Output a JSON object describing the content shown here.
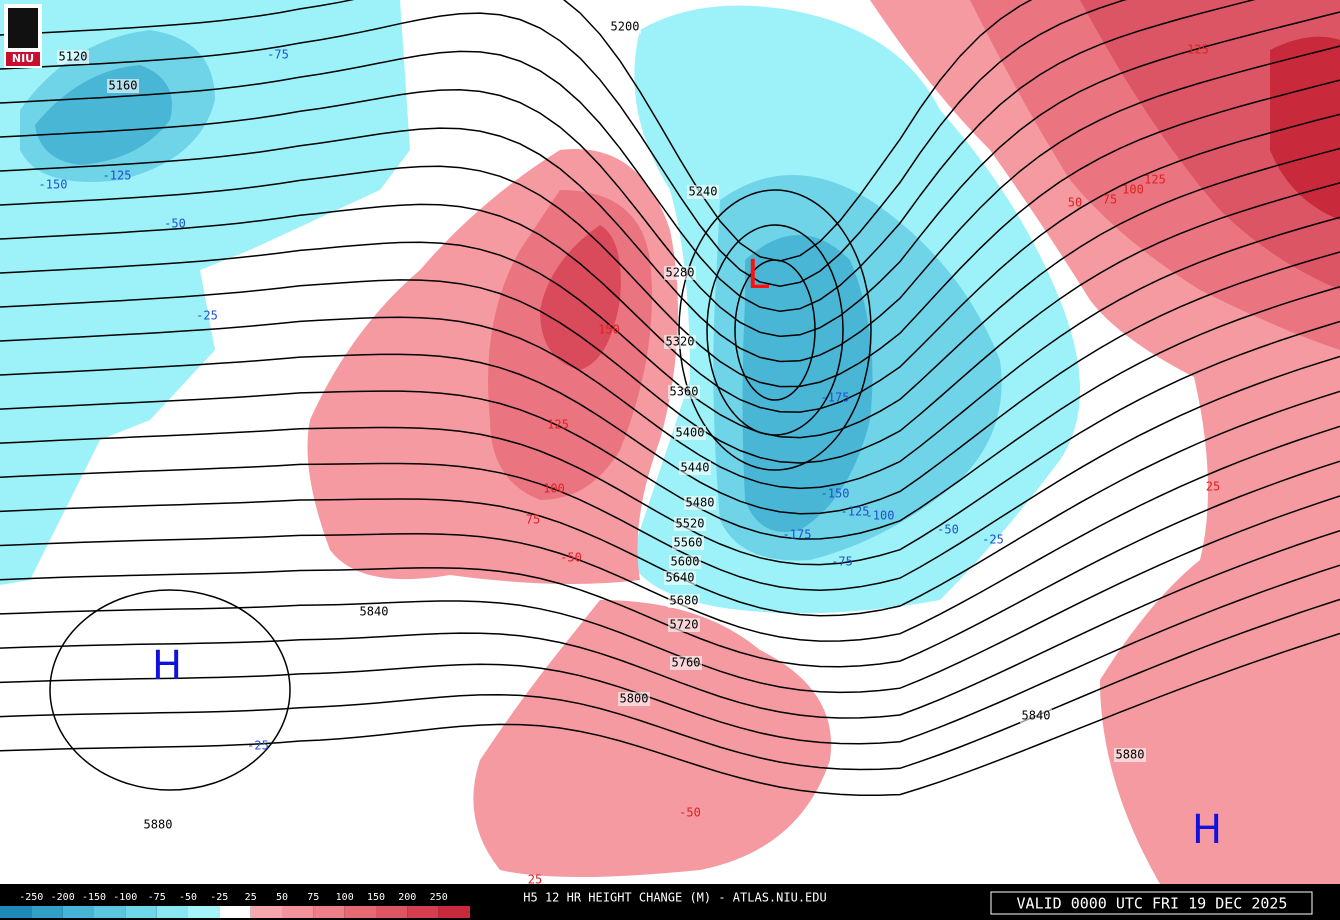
{
  "logo": "NIU",
  "title": "H5 12 HR HEIGHT CHANGE (M) - ATLAS.NIU.EDU",
  "valid": "VALID 0000 UTC FRI 19 DEC 2025",
  "colorbar": {
    "labels": [
      "-250",
      "-200",
      "-150",
      "-100",
      "-75",
      "-50",
      "-25",
      "25",
      "50",
      "75",
      "100",
      "150",
      "200",
      "250"
    ],
    "colors": [
      "#1e88b8",
      "#2fa0c8",
      "#45b4d6",
      "#5cc6e0",
      "#72d6ea",
      "#8ae6f2",
      "#a4f4fa",
      "#ffffff",
      "#f7a8ad",
      "#f3939a",
      "#ec7f88",
      "#e56a76",
      "#dc5564",
      "#d43e50",
      "#c82a3c"
    ]
  },
  "height_labels": [
    "5120",
    "5160",
    "5200",
    "5240",
    "5280",
    "5320",
    "5360",
    "5400",
    "5440",
    "5480",
    "5520",
    "5560",
    "5600",
    "5640",
    "5680",
    "5720",
    "5760",
    "5800",
    "5840",
    "5840",
    "5880",
    "5880"
  ],
  "change_labels": [
    {
      "text": "-75",
      "color": "#2050d0"
    },
    {
      "text": "-150",
      "color": "#2050d0"
    },
    {
      "text": "-125",
      "color": "#2050d0"
    },
    {
      "text": "-50",
      "color": "#2050d0"
    },
    {
      "text": "-25",
      "color": "#2050d0"
    },
    {
      "text": "-175",
      "color": "#2050d0"
    },
    {
      "text": "-150",
      "color": "#2050d0"
    },
    {
      "text": "-125",
      "color": "#2050d0"
    },
    {
      "text": "-100",
      "color": "#2050d0"
    },
    {
      "text": "-175",
      "color": "#2050d0"
    },
    {
      "text": "-75",
      "color": "#2050d0"
    },
    {
      "text": "-50",
      "color": "#2050d0"
    },
    {
      "text": "-25",
      "color": "#2050d0"
    },
    {
      "text": "-25",
      "color": "#2050d0"
    },
    {
      "text": "150",
      "color": "#e02020"
    },
    {
      "text": "125",
      "color": "#e02020"
    },
    {
      "text": "100",
      "color": "#e02020"
    },
    {
      "text": "75",
      "color": "#e02020"
    },
    {
      "text": "-50",
      "color": "#e02020"
    },
    {
      "text": "-50",
      "color": "#e02020"
    },
    {
      "text": "50",
      "color": "#e02020"
    },
    {
      "text": "75",
      "color": "#e02020"
    },
    {
      "text": "100",
      "color": "#e02020"
    },
    {
      "text": "125",
      "color": "#e02020"
    },
    {
      "text": "125",
      "color": "#e02020"
    },
    {
      "text": "25",
      "color": "#e02020"
    },
    {
      "text": "25",
      "color": "#e02020"
    }
  ],
  "pressure_centers": [
    {
      "text": "L",
      "color": "#ff1010"
    },
    {
      "text": "H",
      "color": "#1010e0"
    },
    {
      "text": "H",
      "color": "#1010e0"
    }
  ]
}
